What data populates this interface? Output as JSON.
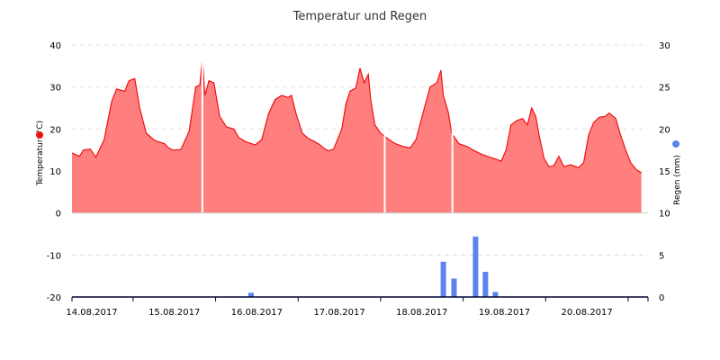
{
  "chart_data": {
    "type": "area",
    "title": "Temperatur und Regen",
    "colors": {
      "temperature_fill": "#ff7f7f",
      "temperature_line": "#ee1111",
      "rain_bar": "#5b84ee",
      "temperature_marker": "#ee1111",
      "rain_marker": "#5b84ee",
      "axis": "#000033",
      "grid": "#e0e0e0"
    },
    "x_axis": {
      "tick_labels": [
        "14.08.2017",
        "15.08.2017",
        "16.08.2017",
        "17.08.2017",
        "18.08.2017",
        "19.08.2017",
        "20.08.2017"
      ],
      "range_days": [
        -0.24,
        6.74
      ]
    },
    "y_left": {
      "label": "Temperatur (°C)",
      "ylim": [
        -20,
        40
      ],
      "ticks": [
        "40",
        "30",
        "20",
        "10",
        "0",
        "-10",
        "-20"
      ]
    },
    "y_right": {
      "label": "Regen (mm)",
      "ylim": [
        0,
        30
      ],
      "ticks": [
        "30",
        "25",
        "20",
        "15",
        "10",
        "5",
        "0"
      ]
    },
    "series": [
      {
        "name": "Temperatur",
        "type": "area",
        "axis": "left",
        "points": [
          [
            -0.24,
            14.3
          ],
          [
            -0.15,
            13.5
          ],
          [
            -0.1,
            15.0
          ],
          [
            -0.02,
            15.2
          ],
          [
            0.05,
            13.3
          ],
          [
            0.15,
            17.5
          ],
          [
            0.24,
            26.5
          ],
          [
            0.3,
            29.5
          ],
          [
            0.4,
            29.0
          ],
          [
            0.45,
            31.5
          ],
          [
            0.52,
            32.0
          ],
          [
            0.58,
            25.0
          ],
          [
            0.66,
            19.0
          ],
          [
            0.76,
            17.3
          ],
          [
            0.88,
            16.5
          ],
          [
            0.93,
            15.5
          ],
          [
            0.98,
            15.0
          ],
          [
            1.08,
            15.1
          ],
          [
            1.18,
            19.5
          ],
          [
            1.26,
            30.0
          ],
          [
            1.31,
            30.5
          ],
          [
            1.34,
            37.0
          ],
          [
            1.37,
            28.0
          ],
          [
            1.42,
            31.5
          ],
          [
            1.48,
            31.0
          ],
          [
            1.55,
            23.0
          ],
          [
            1.63,
            20.5
          ],
          [
            1.72,
            20.0
          ],
          [
            1.78,
            18.0
          ],
          [
            1.86,
            17.0
          ],
          [
            1.98,
            16.2
          ],
          [
            2.06,
            17.5
          ],
          [
            2.14,
            23.5
          ],
          [
            2.22,
            27.0
          ],
          [
            2.3,
            28.0
          ],
          [
            2.38,
            27.5
          ],
          [
            2.42,
            28.0
          ],
          [
            2.47,
            24.0
          ],
          [
            2.55,
            19.0
          ],
          [
            2.62,
            17.8
          ],
          [
            2.7,
            17.0
          ],
          [
            2.76,
            16.3
          ],
          [
            2.82,
            15.3
          ],
          [
            2.87,
            14.8
          ],
          [
            2.93,
            15.2
          ],
          [
            3.03,
            20.0
          ],
          [
            3.08,
            26.0
          ],
          [
            3.13,
            29.0
          ],
          [
            3.2,
            29.8
          ],
          [
            3.25,
            34.5
          ],
          [
            3.3,
            31.0
          ],
          [
            3.35,
            33.0
          ],
          [
            3.38,
            27.0
          ],
          [
            3.43,
            21.0
          ],
          [
            3.5,
            19.0
          ],
          [
            3.6,
            17.5
          ],
          [
            3.68,
            16.5
          ],
          [
            3.78,
            15.8
          ],
          [
            3.86,
            15.5
          ],
          [
            3.93,
            17.5
          ],
          [
            4.03,
            25.0
          ],
          [
            4.1,
            30.0
          ],
          [
            4.18,
            31.0
          ],
          [
            4.23,
            34.0
          ],
          [
            4.26,
            28.0
          ],
          [
            4.32,
            24.0
          ],
          [
            4.36,
            19.0
          ],
          [
            4.45,
            16.5
          ],
          [
            4.55,
            15.8
          ],
          [
            4.62,
            15.0
          ],
          [
            4.72,
            14.0
          ],
          [
            4.82,
            13.3
          ],
          [
            4.9,
            12.8
          ],
          [
            4.96,
            12.3
          ],
          [
            5.02,
            15.0
          ],
          [
            5.08,
            21.0
          ],
          [
            5.15,
            22.0
          ],
          [
            5.22,
            22.5
          ],
          [
            5.28,
            21.0
          ],
          [
            5.33,
            25.0
          ],
          [
            5.38,
            23.0
          ],
          [
            5.42,
            18.5
          ],
          [
            5.48,
            13.0
          ],
          [
            5.54,
            11.0
          ],
          [
            5.6,
            11.3
          ],
          [
            5.66,
            13.5
          ],
          [
            5.72,
            11.0
          ],
          [
            5.8,
            11.5
          ],
          [
            5.9,
            10.8
          ],
          [
            5.96,
            12.0
          ],
          [
            6.02,
            18.5
          ],
          [
            6.08,
            21.5
          ],
          [
            6.15,
            22.8
          ],
          [
            6.22,
            23.0
          ],
          [
            6.27,
            23.8
          ],
          [
            6.35,
            22.5
          ],
          [
            6.4,
            19.0
          ],
          [
            6.47,
            15.0
          ],
          [
            6.53,
            12.0
          ],
          [
            6.6,
            10.3
          ],
          [
            6.66,
            9.5
          ]
        ],
        "gaps": [
          1.34,
          3.55,
          4.37
        ]
      },
      {
        "name": "Regen",
        "type": "bar",
        "axis": "right",
        "bars": [
          [
            1.93,
            0.5
          ],
          [
            4.26,
            4.2
          ],
          [
            4.39,
            2.2
          ],
          [
            4.65,
            7.2
          ],
          [
            4.77,
            3.0
          ],
          [
            4.89,
            0.6
          ]
        ]
      }
    ],
    "grid": true
  }
}
